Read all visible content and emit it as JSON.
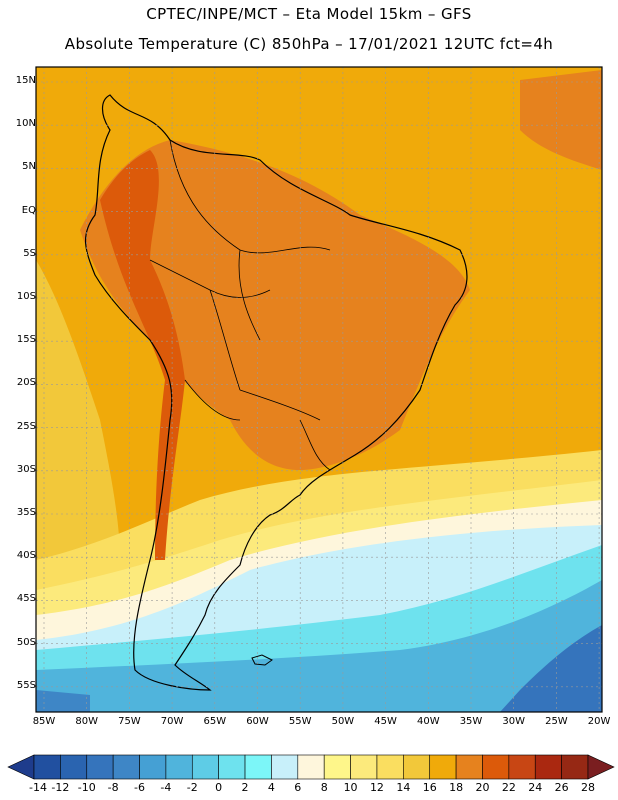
{
  "header": {
    "title_line1": "CPTEC/INPE/MCT –  Eta Model 15km – GFS",
    "title_line2": "Absolute Temperature (C) 850hPa – 17/01/2021 12UTC fct=4h"
  },
  "map": {
    "lat_labels": [
      "15N",
      "10N",
      "5N",
      "EQ",
      "5S",
      "10S",
      "15S",
      "20S",
      "25S",
      "30S",
      "35S",
      "40S",
      "45S",
      "50S",
      "55S"
    ],
    "lon_labels": [
      "85W",
      "80W",
      "75W",
      "70W",
      "65W",
      "60W",
      "55W",
      "50W",
      "45W",
      "40W",
      "35W",
      "30W",
      "25W",
      "20W"
    ],
    "ocean_temperature_c": 18,
    "land_temperature_c": 20,
    "andes_temperature_c": 22,
    "south_zone_temperatures_c": [
      14,
      12,
      8,
      6,
      2,
      0,
      -4
    ]
  },
  "colorbar": {
    "labels": [
      "-14",
      "-12",
      "-10",
      "-8",
      "-6",
      "-4",
      "-2",
      "0",
      "2",
      "4",
      "6",
      "8",
      "10",
      "12",
      "14",
      "16",
      "18",
      "20",
      "22",
      "24",
      "26",
      "28"
    ],
    "colors": [
      "#1e3c8c",
      "#2150a0",
      "#2a64b0",
      "#3574bc",
      "#3e86c6",
      "#45a0d4",
      "#50b4dc",
      "#5ecce6",
      "#6ee2ee",
      "#7cf6f8",
      "#c8f0fa",
      "#fef6dc",
      "#fef68a",
      "#fcea7c",
      "#fade60",
      "#f2c83a",
      "#f0aa0a",
      "#e6821e",
      "#dc5a0a",
      "#c84614",
      "#aa2810",
      "#962814",
      "#7a1e20"
    ]
  }
}
